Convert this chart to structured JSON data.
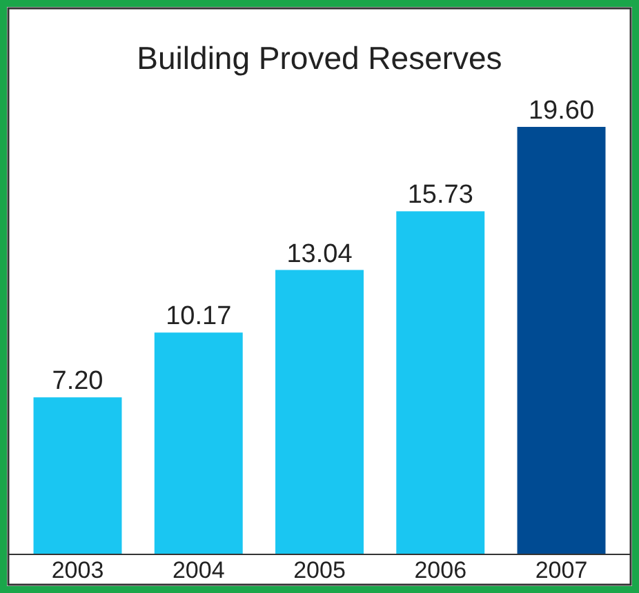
{
  "chart_data": {
    "type": "bar",
    "title": "Building Proved Reserves",
    "categories": [
      "2003",
      "2004",
      "2005",
      "2006",
      "2007"
    ],
    "values": [
      7.2,
      10.17,
      13.04,
      15.73,
      19.6
    ],
    "value_labels": [
      "7.20",
      "10.17",
      "13.04",
      "15.73",
      "19.60"
    ],
    "colors": [
      "#1ac6f2",
      "#1ac6f2",
      "#1ac6f2",
      "#1ac6f2",
      "#004b93"
    ]
  }
}
